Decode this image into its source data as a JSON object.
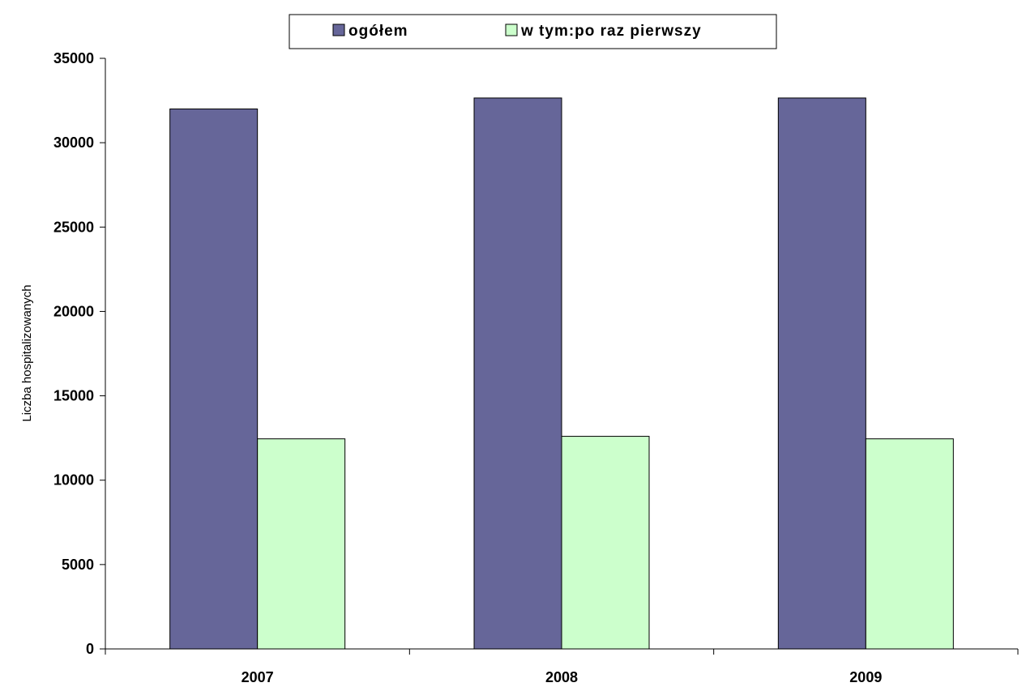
{
  "chart_data": {
    "type": "bar",
    "categories": [
      "2007",
      "2008",
      "2009"
    ],
    "series": [
      {
        "name": "ogółem",
        "values": [
          32000,
          32650,
          32650
        ],
        "color": "#666699"
      },
      {
        "name": "w tym:po raz pierwszy",
        "values": [
          12450,
          12600,
          12450
        ],
        "color": "#CCFFCC"
      }
    ],
    "ylabel": "Liczba hospitalizowanych",
    "xlabel": "",
    "ylim": [
      0,
      35000
    ],
    "yticks": [
      0,
      5000,
      10000,
      15000,
      20000,
      25000,
      30000,
      35000
    ],
    "grid": false,
    "legend_position": "top-center"
  }
}
